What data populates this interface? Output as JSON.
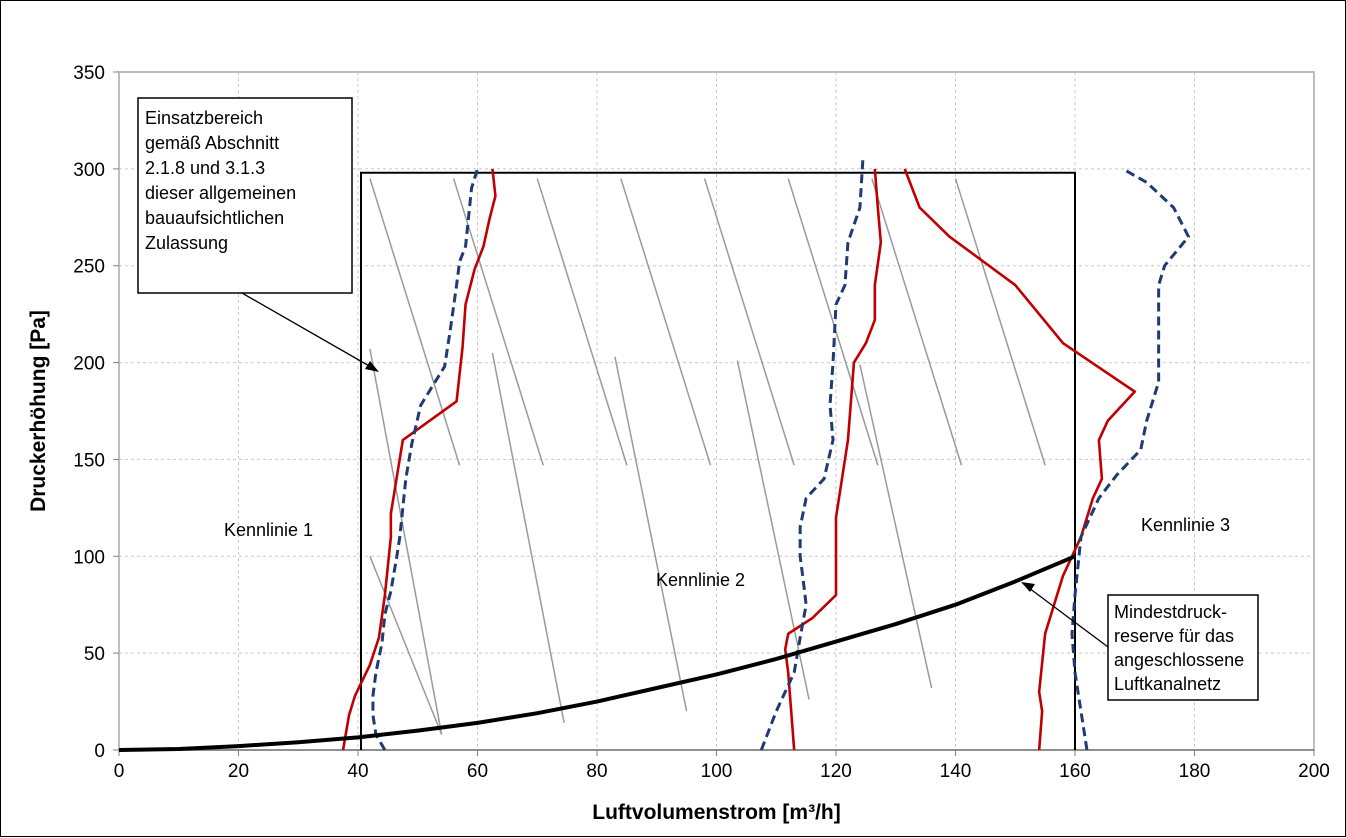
{
  "chart_data": {
    "type": "line",
    "xlabel": "Luftvolumenstrom [m³/h]",
    "ylabel": "Druckerhöhung  [Pa]",
    "xlim": [
      0,
      200
    ],
    "ylim": [
      0,
      350
    ],
    "xticks": [
      0,
      20,
      40,
      60,
      80,
      100,
      120,
      140,
      160,
      180,
      200
    ],
    "yticks": [
      0,
      50,
      100,
      150,
      200,
      250,
      300,
      350
    ],
    "grid": true,
    "series": [
      {
        "label": "Kennlinie 1",
        "style": "solid",
        "color": "#c00000",
        "points": [
          [
            37.5,
            0
          ],
          [
            38.5,
            18
          ],
          [
            39.5,
            28
          ],
          [
            42,
            44
          ],
          [
            43.5,
            58
          ],
          [
            44.5,
            80
          ],
          [
            45,
            95
          ],
          [
            45.5,
            110
          ],
          [
            45.5,
            122
          ],
          [
            47.5,
            160
          ],
          [
            56.5,
            180
          ],
          [
            57.5,
            208
          ],
          [
            58,
            230
          ],
          [
            59.5,
            248
          ],
          [
            61,
            260
          ],
          [
            62,
            274
          ],
          [
            63,
            286
          ],
          [
            62.5,
            300
          ]
        ]
      },
      {
        "label": "Kennlinie 1",
        "style": "dashed",
        "color": "#1f3b73",
        "points": [
          [
            44.5,
            0
          ],
          [
            43,
            8
          ],
          [
            42.5,
            18
          ],
          [
            42.5,
            28
          ],
          [
            43,
            40
          ],
          [
            44,
            55
          ],
          [
            44.5,
            70
          ],
          [
            45.5,
            82
          ],
          [
            46.5,
            100
          ],
          [
            47,
            110
          ],
          [
            48,
            140
          ],
          [
            49,
            158
          ],
          [
            50.5,
            178
          ],
          [
            54.5,
            198
          ],
          [
            55.5,
            218
          ],
          [
            56.5,
            240
          ],
          [
            57,
            252
          ],
          [
            58,
            260
          ],
          [
            59,
            290
          ],
          [
            60,
            300
          ]
        ]
      },
      {
        "label": "Kennlinie 2",
        "style": "solid",
        "color": "#c00000",
        "points": [
          [
            113,
            0
          ],
          [
            112.5,
            20
          ],
          [
            112,
            40
          ],
          [
            111.5,
            52
          ],
          [
            112,
            60
          ],
          [
            116,
            68
          ],
          [
            120,
            80
          ],
          [
            120,
            120
          ],
          [
            121,
            140
          ],
          [
            122,
            160
          ],
          [
            123,
            200
          ],
          [
            125,
            210
          ],
          [
            126.5,
            222
          ],
          [
            126.5,
            240
          ],
          [
            127.5,
            262
          ],
          [
            127,
            280
          ],
          [
            126.5,
            300
          ]
        ]
      },
      {
        "label": "Kennlinie 2",
        "style": "dashed",
        "color": "#1f3b73",
        "points": [
          [
            107.5,
            0
          ],
          [
            110,
            20
          ],
          [
            113,
            40
          ],
          [
            114,
            58
          ],
          [
            115,
            75
          ],
          [
            114.5,
            88
          ],
          [
            114,
            100
          ],
          [
            114,
            115
          ],
          [
            115,
            130
          ],
          [
            118,
            140
          ],
          [
            119.5,
            160
          ],
          [
            119,
            178
          ],
          [
            119.5,
            200
          ],
          [
            120,
            230
          ],
          [
            121.5,
            240
          ],
          [
            122,
            262
          ],
          [
            124,
            280
          ],
          [
            124.5,
            305
          ]
        ]
      },
      {
        "label": "Kennlinie 3",
        "style": "solid",
        "color": "#c00000",
        "points": [
          [
            154,
            0
          ],
          [
            154.5,
            20
          ],
          [
            154,
            30
          ],
          [
            155,
            60
          ],
          [
            158,
            90
          ],
          [
            161,
            110
          ],
          [
            163,
            130
          ],
          [
            164.5,
            140
          ],
          [
            164,
            160
          ],
          [
            165.5,
            170
          ],
          [
            170,
            185
          ],
          [
            158,
            210
          ],
          [
            150,
            240
          ],
          [
            139,
            265
          ],
          [
            134,
            280
          ],
          [
            131.5,
            300
          ]
        ]
      },
      {
        "label": "Kennlinie 3",
        "style": "dashed",
        "color": "#1f3b73",
        "points": [
          [
            162,
            0
          ],
          [
            161,
            20
          ],
          [
            160,
            40
          ],
          [
            159.5,
            60
          ],
          [
            160,
            80
          ],
          [
            161,
            110
          ],
          [
            164,
            130
          ],
          [
            167,
            142
          ],
          [
            171,
            155
          ],
          [
            172,
            170
          ],
          [
            174,
            190
          ],
          [
            174,
            210
          ],
          [
            174,
            240
          ],
          [
            175,
            250
          ],
          [
            179,
            265
          ],
          [
            176.5,
            280
          ],
          [
            172,
            293
          ],
          [
            168,
            300
          ]
        ]
      },
      {
        "label": "Mindestdruckreserve",
        "style": "solid-thick",
        "color": "#000000",
        "points": [
          [
            0,
            0
          ],
          [
            10,
            0.5
          ],
          [
            20,
            2
          ],
          [
            30,
            4
          ],
          [
            40,
            6.5
          ],
          [
            50,
            10
          ],
          [
            60,
            14
          ],
          [
            70,
            19
          ],
          [
            80,
            25
          ],
          [
            90,
            32
          ],
          [
            100,
            39
          ],
          [
            110,
            47
          ],
          [
            120,
            56
          ],
          [
            130,
            65
          ],
          [
            140,
            75
          ],
          [
            150,
            87
          ],
          [
            160,
            100
          ]
        ]
      }
    ],
    "region_box": {
      "x": [
        40.5,
        160
      ],
      "y": [
        0,
        298
      ]
    },
    "annotations": {
      "kennlinie1": "Kennlinie 1",
      "kennlinie2": "Kennlinie 2",
      "kennlinie3": "Kennlinie 3",
      "einsatz": [
        "Einsatzbereich",
        "gemäß Abschnitt",
        "2.1.8 und 3.1.3",
        "dieser allgemeinen",
        "bauaufsichtlichen",
        "Zulassung"
      ],
      "mindest": [
        "Mindestdruck-",
        "reserve für das",
        "angeschlossene",
        "Luftkanalnetz"
      ]
    }
  }
}
